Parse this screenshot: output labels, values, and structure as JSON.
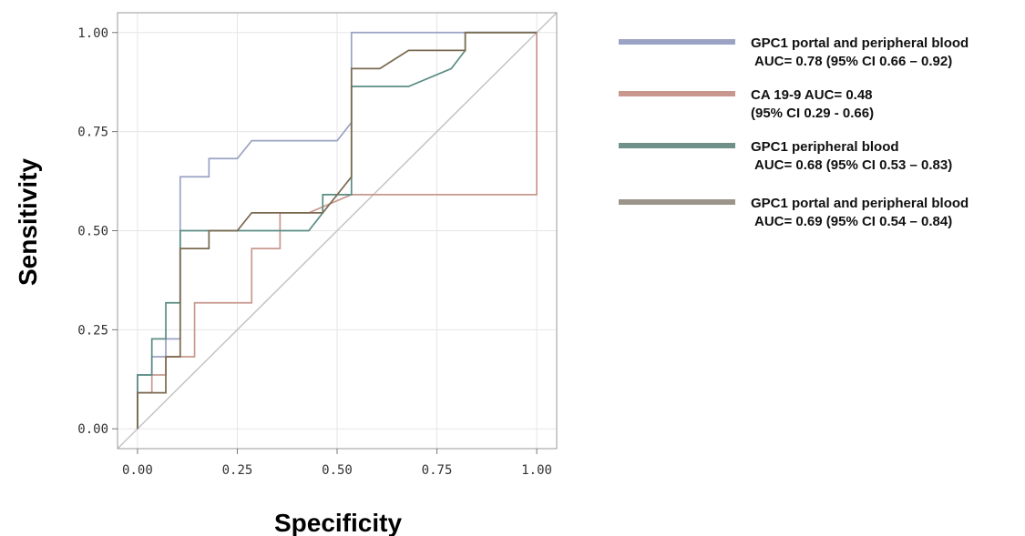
{
  "chart_data": {
    "type": "line",
    "xlabel": "Specificity",
    "ylabel": "Sensitivity",
    "xlim": [
      -0.05,
      1.05
    ],
    "ylim": [
      -0.05,
      1.05
    ],
    "xticks": [
      "0.00",
      "0.25",
      "0.50",
      "0.75",
      "1.00"
    ],
    "yticks": [
      "0.00",
      "0.25",
      "0.50",
      "0.75",
      "1.00"
    ],
    "grid": true,
    "legend_position": "right",
    "reference_line": {
      "x": [
        0,
        1
      ],
      "y": [
        0,
        1
      ],
      "color": "#c4c4c4"
    },
    "series": [
      {
        "legend": [
          "GPC1 portal and peripheral blood",
          "AUC= 0.78 (95% CI  0.66 – 0.92)"
        ],
        "color": "#9aa3c3",
        "x": [
          0,
          0,
          0.036,
          0.036,
          0.071,
          0.071,
          0.107,
          0.107,
          0.179,
          0.179,
          0.25,
          0.286,
          0.5,
          0.536,
          0.536,
          1.0
        ],
        "y": [
          0,
          0.136,
          0.136,
          0.182,
          0.182,
          0.227,
          0.227,
          0.636,
          0.636,
          0.682,
          0.682,
          0.727,
          0.727,
          0.773,
          1.0,
          1.0
        ]
      },
      {
        "legend": [
          "CA 19-9 AUC= 0.48",
          "(95% CI 0.29 - 0.66)"
        ],
        "color": "#c8988e",
        "x": [
          0,
          0,
          0.036,
          0.036,
          0.071,
          0.071,
          0.143,
          0.143,
          0.286,
          0.286,
          0.357,
          0.357,
          0.429,
          0.536,
          0.536,
          1.0,
          1.0
        ],
        "y": [
          0,
          0.091,
          0.091,
          0.136,
          0.136,
          0.182,
          0.182,
          0.318,
          0.318,
          0.455,
          0.455,
          0.545,
          0.545,
          0.591,
          0.591,
          0.591,
          1.0
        ]
      },
      {
        "legend": [
          "GPC1 peripheral blood",
          "AUC= 0.68 (95% CI  0.53 – 0.83)"
        ],
        "color": "#5a8c84",
        "x": [
          0,
          0,
          0.036,
          0.036,
          0.071,
          0.071,
          0.107,
          0.107,
          0.429,
          0.464,
          0.464,
          0.536,
          0.536,
          0.679,
          0.786,
          0.821,
          0.821,
          1.0
        ],
        "y": [
          0,
          0.136,
          0.136,
          0.227,
          0.227,
          0.318,
          0.318,
          0.5,
          0.5,
          0.545,
          0.591,
          0.591,
          0.864,
          0.864,
          0.909,
          0.955,
          1.0,
          1.0
        ]
      },
      {
        "legend": [
          "GPC1 portal and peripheral blood",
          "AUC= 0.69 (95% CI  0.54 – 0.84)"
        ],
        "color": "#7a6a50",
        "x": [
          0,
          0,
          0.071,
          0.071,
          0.107,
          0.107,
          0.179,
          0.179,
          0.25,
          0.286,
          0.464,
          0.536,
          0.536,
          0.607,
          0.679,
          0.821,
          0.821,
          1.0
        ],
        "y": [
          0,
          0.091,
          0.091,
          0.182,
          0.182,
          0.455,
          0.455,
          0.5,
          0.5,
          0.545,
          0.545,
          0.636,
          0.909,
          0.909,
          0.955,
          0.955,
          1.0,
          1.0
        ]
      }
    ],
    "legend_swatch_colors": [
      "#9aa3c3",
      "#c8988e",
      "#6f9189",
      "#9a948a"
    ]
  }
}
